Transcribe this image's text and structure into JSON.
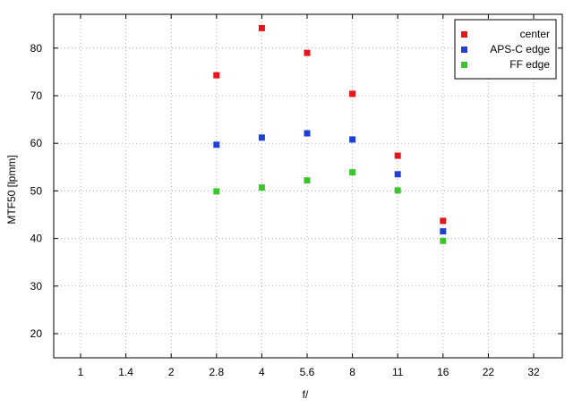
{
  "chart_data": {
    "type": "scatter",
    "title": "",
    "xlabel": "f/",
    "ylabel": "MTF50 [lpmm]",
    "x_ticks": [
      "1",
      "1.4",
      "2",
      "2.8",
      "4",
      "5.6",
      "8",
      "11",
      "16",
      "22",
      "32"
    ],
    "y_ticks": [
      20,
      30,
      40,
      50,
      60,
      70,
      80
    ],
    "ylim": [
      15,
      88
    ],
    "grid": true,
    "legend_position": "top-right",
    "series": [
      {
        "name": "center",
        "color": "#e8141a",
        "points": [
          {
            "x": "2.8",
            "y": 74.3
          },
          {
            "x": "4",
            "y": 84.2
          },
          {
            "x": "5.6",
            "y": 79.0
          },
          {
            "x": "8",
            "y": 70.4
          },
          {
            "x": "11",
            "y": 57.4
          },
          {
            "x": "16",
            "y": 43.7
          }
        ]
      },
      {
        "name": "APS-C edge",
        "color": "#1f3fd6",
        "points": [
          {
            "x": "2.8",
            "y": 59.7
          },
          {
            "x": "4",
            "y": 61.2
          },
          {
            "x": "5.6",
            "y": 62.1
          },
          {
            "x": "8",
            "y": 60.8
          },
          {
            "x": "11",
            "y": 53.5
          },
          {
            "x": "16",
            "y": 41.5
          }
        ]
      },
      {
        "name": "FF edge",
        "color": "#38c62a",
        "points": [
          {
            "x": "2.8",
            "y": 49.9
          },
          {
            "x": "4",
            "y": 50.7
          },
          {
            "x": "5.6",
            "y": 52.2
          },
          {
            "x": "8",
            "y": 53.9
          },
          {
            "x": "11",
            "y": 50.1
          },
          {
            "x": "16",
            "y": 39.5
          }
        ]
      }
    ]
  }
}
